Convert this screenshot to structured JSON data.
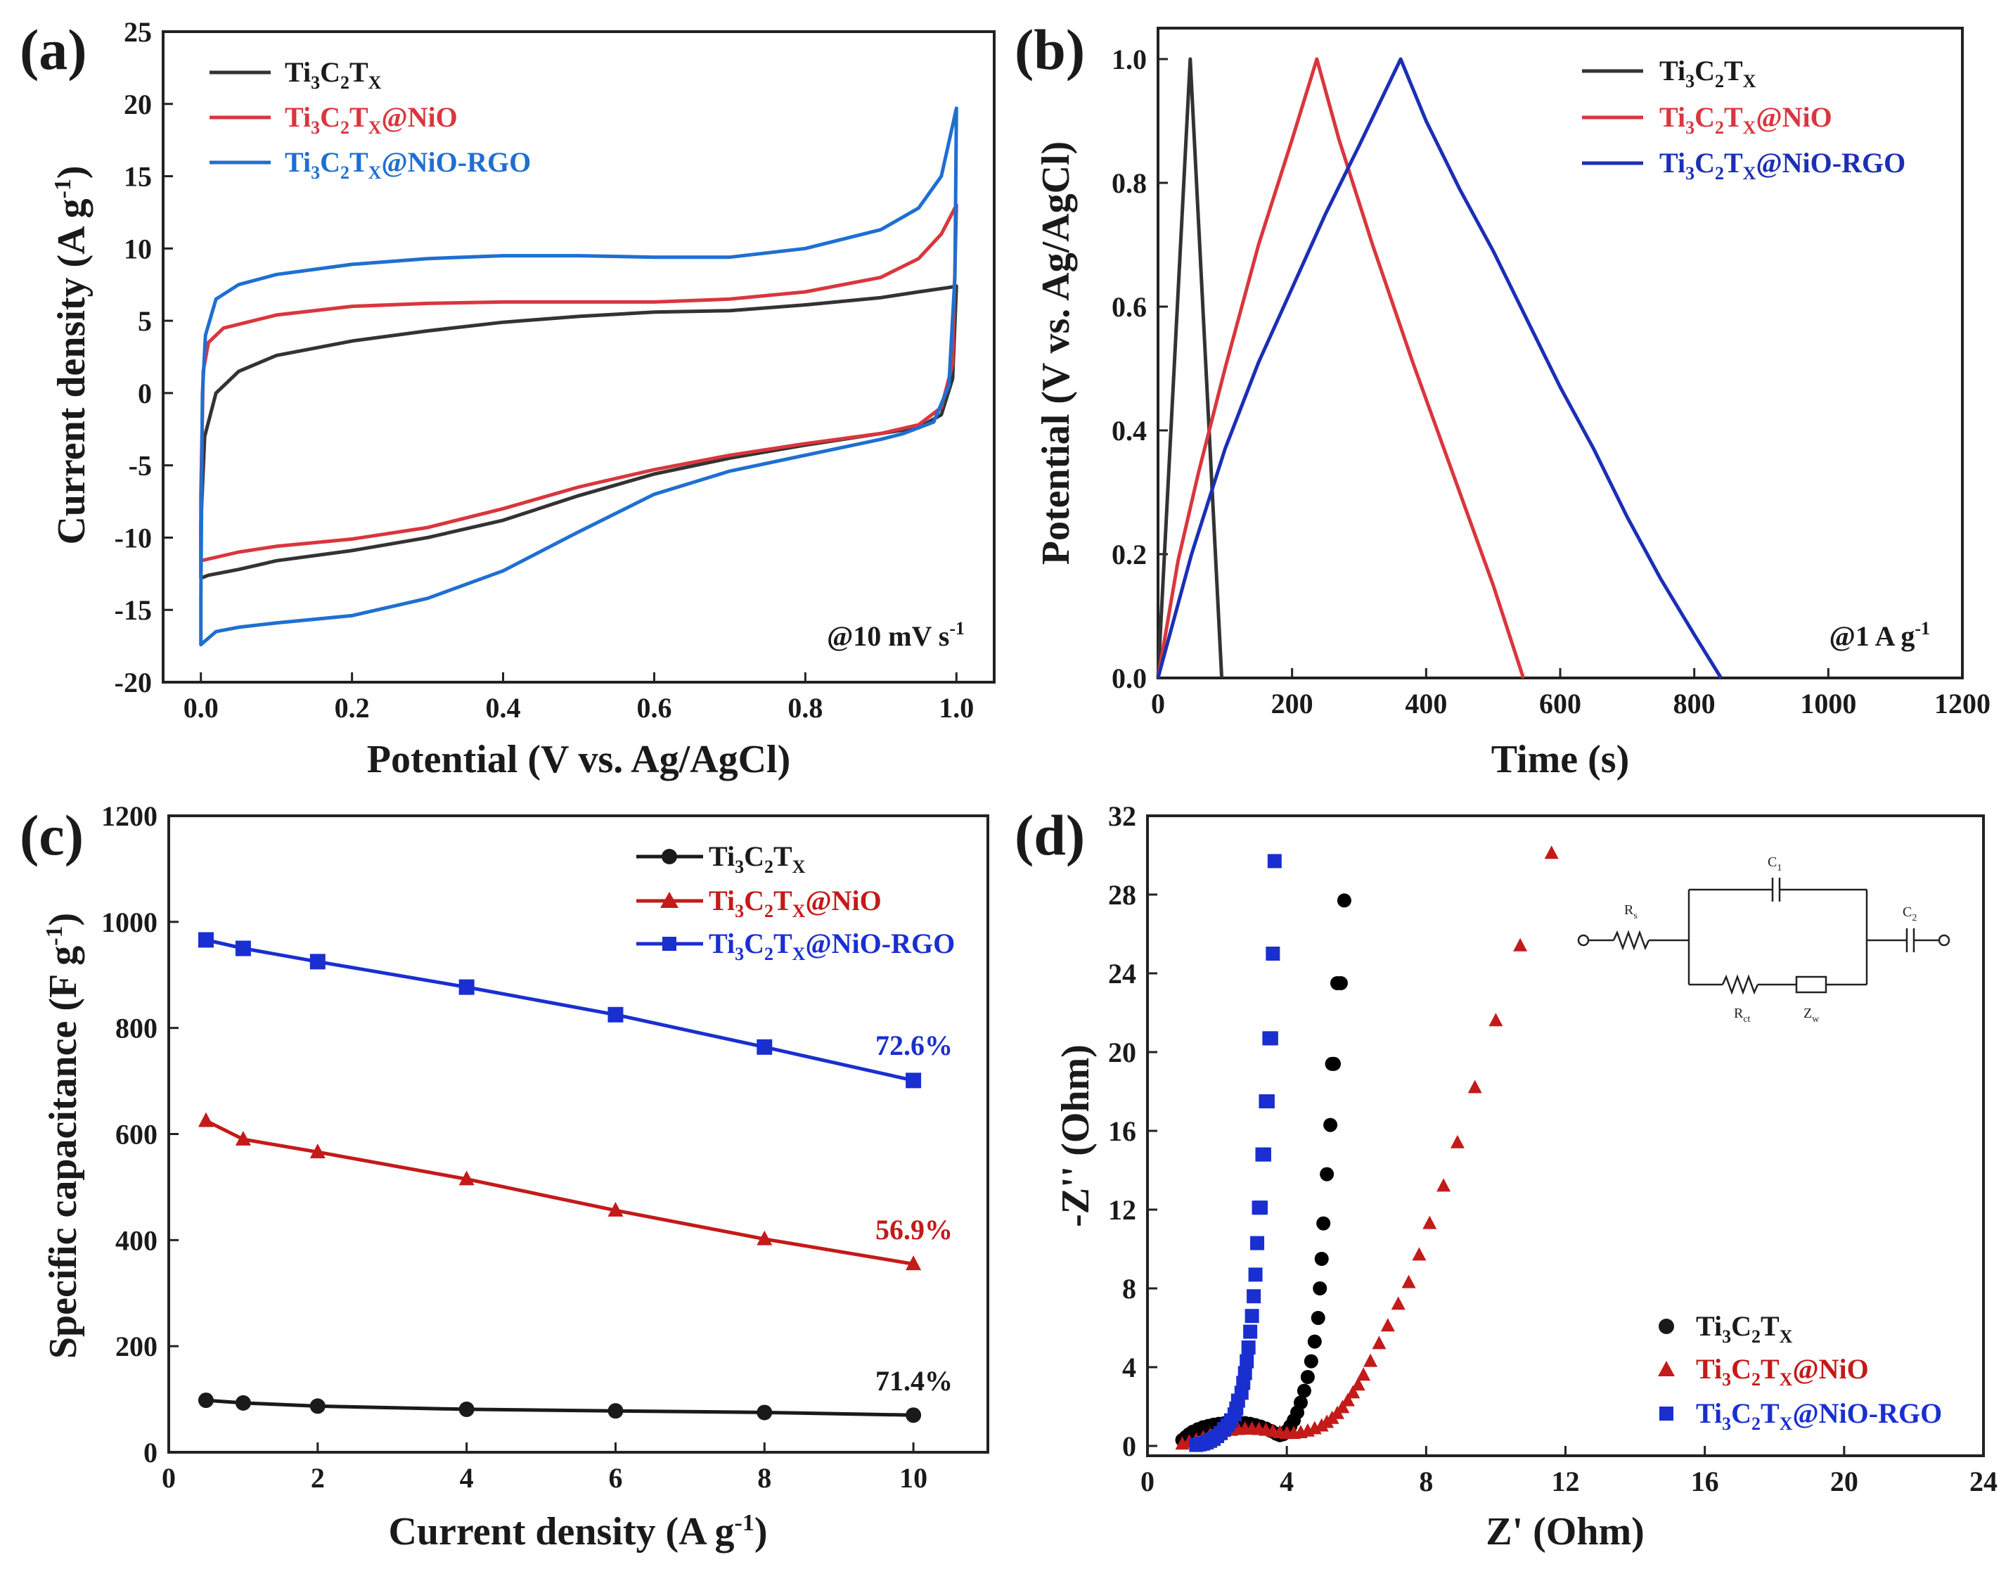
{
  "figure": {
    "colors": {
      "black": "#333333",
      "red": "#d9363e",
      "blue": "#1f6fd1",
      "navy": "#1b2fb5",
      "bluesq": "#1a2fd0",
      "text": "#1a1a1a"
    },
    "panels": {
      "a": {
        "label": "(a)",
        "note": "@10 mV s",
        "note_sup": "-1",
        "xlabel": "Potential (V vs. Ag/AgCl)",
        "ylabel": "Current density (A g",
        "ylabel_sup": "-1",
        "ylabel_end": ")"
      },
      "b": {
        "label": "(b)",
        "note": "@1 A g",
        "note_sup": "-1",
        "xlabel": "Time (s)",
        "ylabel": "Potential (V vs. Ag/AgCl)"
      },
      "c": {
        "label": "(c)",
        "xlabel": "Current density (A g",
        "xlabel_sup": "-1",
        "xlabel_end": ")",
        "ylabel": "Specific capacitance (F g",
        "ylabel_sup": "-1",
        "ylabel_end": ")"
      },
      "d": {
        "label": "(d)",
        "xlabel": "Z' (Ohm)",
        "ylabel": "-Z'' (Ohm)"
      }
    },
    "legend": {
      "s1": {
        "base": "Ti",
        "n1": "3",
        "c": "C",
        "n2": "2",
        "t": "T",
        "x": "X",
        "suffix": ""
      },
      "s2": {
        "base": "Ti",
        "n1": "3",
        "c": "C",
        "n2": "2",
        "t": "T",
        "x": "X",
        "suffix": "@NiO"
      },
      "s3": {
        "base": "Ti",
        "n1": "3",
        "c": "C",
        "n2": "2",
        "t": "T",
        "x": "X",
        "suffix": "@NiO-RGO"
      }
    },
    "circuit": {
      "rs": "R",
      "rs_sub": "s",
      "c1": "C",
      "c1_sub": "1",
      "c2": "C",
      "c2_sub": "2",
      "rct": "R",
      "rct_sub": "ct",
      "zw": "Z",
      "zw_sub": "w"
    },
    "retention": {
      "blue": "72.6%",
      "red": "56.9%",
      "black": "71.4%"
    }
  },
  "chart_data": [
    {
      "panel": "a",
      "type": "line",
      "title": "",
      "xlabel": "Potential (V vs. Ag/AgCl)",
      "ylabel": "Current density (A g-1)",
      "xlim": [
        -0.05,
        1.05
      ],
      "ylim": [
        -20,
        25
      ],
      "xticks": [
        "0.0",
        "0.2",
        "0.4",
        "0.6",
        "0.8",
        "1.0"
      ],
      "xtick_values": [
        0,
        0.2,
        0.4,
        0.6,
        0.8,
        1.0
      ],
      "yticks": [
        -20,
        -15,
        -10,
        -5,
        0,
        5,
        10,
        15,
        20,
        25
      ],
      "annotation": "@10 mV s-1",
      "series": [
        {
          "name": "Ti3C2TX",
          "color": "black",
          "upper": [
            [
              0,
              -9
            ],
            [
              0.005,
              -3
            ],
            [
              0.02,
              0
            ],
            [
              0.05,
              1.5
            ],
            [
              0.1,
              2.6
            ],
            [
              0.2,
              3.6
            ],
            [
              0.3,
              4.3
            ],
            [
              0.4,
              4.9
            ],
            [
              0.5,
              5.3
            ],
            [
              0.6,
              5.6
            ],
            [
              0.7,
              5.7
            ],
            [
              0.8,
              6.1
            ],
            [
              0.9,
              6.6
            ],
            [
              0.95,
              7.0
            ],
            [
              0.99,
              7.3
            ],
            [
              1.0,
              7.4
            ]
          ],
          "lower": [
            [
              1.0,
              7.4
            ],
            [
              0.995,
              1.0
            ],
            [
              0.98,
              -1.5
            ],
            [
              0.95,
              -2.4
            ],
            [
              0.9,
              -2.8
            ],
            [
              0.8,
              -3.6
            ],
            [
              0.7,
              -4.5
            ],
            [
              0.6,
              -5.6
            ],
            [
              0.5,
              -7.1
            ],
            [
              0.4,
              -8.8
            ],
            [
              0.3,
              -10.0
            ],
            [
              0.2,
              -10.9
            ],
            [
              0.1,
              -11.6
            ],
            [
              0.05,
              -12.2
            ],
            [
              0.01,
              -12.6
            ],
            [
              0,
              -12.8
            ],
            [
              0,
              -9
            ]
          ]
        },
        {
          "name": "Ti3C2TX@NiO",
          "color": "red",
          "upper": [
            [
              0,
              -7
            ],
            [
              0.003,
              1.5
            ],
            [
              0.01,
              3.5
            ],
            [
              0.03,
              4.5
            ],
            [
              0.1,
              5.4
            ],
            [
              0.2,
              6.0
            ],
            [
              0.3,
              6.2
            ],
            [
              0.4,
              6.3
            ],
            [
              0.5,
              6.3
            ],
            [
              0.6,
              6.3
            ],
            [
              0.7,
              6.5
            ],
            [
              0.8,
              7.0
            ],
            [
              0.9,
              8.0
            ],
            [
              0.95,
              9.3
            ],
            [
              0.98,
              11.0
            ],
            [
              1.0,
              13.0
            ]
          ],
          "lower": [
            [
              1.0,
              13.0
            ],
            [
              0.995,
              2.0
            ],
            [
              0.98,
              -1.0
            ],
            [
              0.95,
              -2.2
            ],
            [
              0.9,
              -2.8
            ],
            [
              0.8,
              -3.5
            ],
            [
              0.7,
              -4.3
            ],
            [
              0.6,
              -5.3
            ],
            [
              0.5,
              -6.5
            ],
            [
              0.4,
              -8.0
            ],
            [
              0.3,
              -9.3
            ],
            [
              0.2,
              -10.1
            ],
            [
              0.1,
              -10.6
            ],
            [
              0.05,
              -11.0
            ],
            [
              0,
              -11.6
            ],
            [
              0,
              -7
            ]
          ]
        },
        {
          "name": "Ti3C2TX@NiO-RGO",
          "color": "blue",
          "upper": [
            [
              0,
              -14
            ],
            [
              0.002,
              0
            ],
            [
              0.006,
              4
            ],
            [
              0.02,
              6.5
            ],
            [
              0.05,
              7.5
            ],
            [
              0.1,
              8.2
            ],
            [
              0.2,
              8.9
            ],
            [
              0.3,
              9.3
            ],
            [
              0.4,
              9.5
            ],
            [
              0.5,
              9.5
            ],
            [
              0.6,
              9.4
            ],
            [
              0.7,
              9.4
            ],
            [
              0.8,
              10.0
            ],
            [
              0.9,
              11.3
            ],
            [
              0.95,
              12.8
            ],
            [
              0.98,
              15.0
            ],
            [
              1.0,
              19.7
            ]
          ],
          "lower": [
            [
              1.0,
              19.7
            ],
            [
              0.998,
              8.0
            ],
            [
              0.99,
              0.5
            ],
            [
              0.97,
              -2.0
            ],
            [
              0.93,
              -2.8
            ],
            [
              0.9,
              -3.2
            ],
            [
              0.8,
              -4.3
            ],
            [
              0.7,
              -5.4
            ],
            [
              0.6,
              -7.0
            ],
            [
              0.5,
              -9.6
            ],
            [
              0.4,
              -12.3
            ],
            [
              0.3,
              -14.2
            ],
            [
              0.2,
              -15.4
            ],
            [
              0.1,
              -15.9
            ],
            [
              0.05,
              -16.2
            ],
            [
              0.02,
              -16.5
            ],
            [
              0,
              -17.4
            ],
            [
              0,
              -14
            ]
          ]
        }
      ]
    },
    {
      "panel": "b",
      "type": "line",
      "title": "",
      "xlabel": "Time (s)",
      "ylabel": "Potential (V vs. Ag/AgCl)",
      "xlim": [
        0,
        1200
      ],
      "ylim": [
        0,
        1.05
      ],
      "xticks": [
        0,
        200,
        400,
        600,
        800,
        1000,
        1200
      ],
      "yticks": [
        "0.0",
        "0.2",
        "0.4",
        "0.6",
        "0.8",
        "1.0"
      ],
      "ytick_values": [
        0,
        0.2,
        0.4,
        0.6,
        0.8,
        1.0
      ],
      "annotation": "@1 A g-1",
      "series": [
        {
          "name": "Ti3C2TX",
          "color": "black",
          "x": [
            0,
            48,
            95
          ],
          "y": [
            0,
            1.0,
            0
          ]
        },
        {
          "name": "Ti3C2TX@NiO",
          "color": "red",
          "x": [
            0,
            30,
            60,
            100,
            150,
            200,
            237,
            270,
            320,
            380,
            440,
            500,
            545
          ],
          "y": [
            0,
            0.19,
            0.33,
            0.5,
            0.7,
            0.87,
            1.0,
            0.87,
            0.7,
            0.51,
            0.33,
            0.15,
            0
          ]
        },
        {
          "name": "Ti3C2TX@NiO-RGO",
          "color": "navy",
          "x": [
            0,
            50,
            100,
            150,
            200,
            250,
            300,
            362,
            400,
            450,
            500,
            550,
            600,
            650,
            700,
            750,
            800,
            840
          ],
          "y": [
            0,
            0.2,
            0.37,
            0.51,
            0.63,
            0.75,
            0.86,
            1.0,
            0.9,
            0.79,
            0.69,
            0.58,
            0.47,
            0.37,
            0.26,
            0.16,
            0.07,
            0
          ]
        }
      ]
    },
    {
      "panel": "c",
      "type": "line",
      "title": "",
      "xlabel": "Current density (A g-1)",
      "ylabel": "Specific capacitance (F g-1)",
      "xlim": [
        0,
        11
      ],
      "ylim": [
        0,
        1200
      ],
      "xticks": [
        0,
        2,
        4,
        6,
        8,
        10
      ],
      "yticks": [
        0,
        200,
        400,
        600,
        800,
        1000,
        1200
      ],
      "x": [
        0.5,
        1,
        2,
        4,
        6,
        8,
        10
      ],
      "series": [
        {
          "name": "Ti3C2TX",
          "color": "black",
          "marker": "circle",
          "values": [
            98,
            93,
            87,
            81,
            78,
            75,
            70
          ]
        },
        {
          "name": "Ti3C2TX@NiO",
          "color": "red",
          "marker": "triangle",
          "values": [
            625,
            590,
            566,
            515,
            456,
            402,
            355
          ]
        },
        {
          "name": "Ti3C2TX@NiO-RGO",
          "color": "bluesq",
          "marker": "square",
          "values": [
            966,
            950,
            925,
            877,
            825,
            764,
            701
          ]
        }
      ],
      "annotations": [
        "72.6%",
        "56.9%",
        "71.4%"
      ]
    },
    {
      "panel": "d",
      "type": "scatter",
      "title": "",
      "xlabel": "Z' (Ohm)",
      "ylabel": "-Z'' (Ohm)",
      "xlim": [
        0,
        24
      ],
      "ylim": [
        -0.5,
        32
      ],
      "xticks": [
        0,
        4,
        8,
        12,
        16,
        20,
        24
      ],
      "yticks": [
        0,
        4,
        8,
        12,
        16,
        20,
        24,
        28,
        32
      ],
      "series": [
        {
          "name": "Ti3C2TX",
          "color": "black",
          "marker": "circle",
          "x": [
            1.0,
            1.1,
            1.2,
            1.3,
            1.45,
            1.6,
            1.75,
            1.9,
            2.05,
            2.2,
            2.35,
            2.5,
            2.65,
            2.8,
            2.95,
            3.1,
            3.25,
            3.4,
            3.55,
            3.7,
            3.8,
            3.9,
            4.0,
            4.1,
            4.2,
            4.3,
            4.4,
            4.5,
            4.6,
            4.7,
            4.8,
            4.9,
            4.95,
            5.0,
            5.05,
            5.15,
            5.25,
            5.3,
            5.35,
            5.45,
            5.55,
            5.65
          ],
          "y": [
            0.3,
            0.45,
            0.6,
            0.72,
            0.85,
            0.95,
            1.02,
            1.08,
            1.12,
            1.15,
            1.17,
            1.18,
            1.18,
            1.16,
            1.12,
            1.06,
            0.98,
            0.88,
            0.76,
            0.62,
            0.55,
            0.6,
            0.75,
            1.0,
            1.3,
            1.7,
            2.2,
            2.8,
            3.5,
            4.3,
            5.3,
            6.5,
            8.0,
            9.5,
            11.3,
            13.8,
            16.3,
            19.4,
            19.4,
            23.5,
            23.5,
            27.7
          ]
        },
        {
          "name": "Ti3C2TX@NiO",
          "color": "red",
          "marker": "triangle",
          "x": [
            1.0,
            1.2,
            1.4,
            1.6,
            1.8,
            2.0,
            2.2,
            2.4,
            2.6,
            2.8,
            3.0,
            3.2,
            3.4,
            3.6,
            3.8,
            4.0,
            4.2,
            4.4,
            4.6,
            4.8,
            5.0,
            5.15,
            5.3,
            5.45,
            5.6,
            5.75,
            5.9,
            6.05,
            6.2,
            6.4,
            6.65,
            6.9,
            7.2,
            7.5,
            7.8,
            8.1,
            8.5,
            8.9,
            9.4,
            10.0,
            10.7,
            11.6
          ],
          "y": [
            0.1,
            0.2,
            0.3,
            0.42,
            0.55,
            0.66,
            0.74,
            0.8,
            0.84,
            0.86,
            0.86,
            0.84,
            0.8,
            0.74,
            0.68,
            0.64,
            0.64,
            0.68,
            0.76,
            0.88,
            1.02,
            1.2,
            1.4,
            1.65,
            1.95,
            2.3,
            2.7,
            3.1,
            3.6,
            4.3,
            5.2,
            6.1,
            7.2,
            8.3,
            9.7,
            11.3,
            13.2,
            15.4,
            18.2,
            21.6,
            25.4,
            30.1
          ]
        },
        {
          "name": "Ti3C2TX@NiO-RGO",
          "color": "bluesq",
          "marker": "square",
          "x": [
            1.4,
            1.5,
            1.6,
            1.7,
            1.8,
            1.9,
            2.0,
            2.1,
            2.2,
            2.3,
            2.4,
            2.5,
            2.55,
            2.6,
            2.7,
            2.75,
            2.8,
            2.85,
            2.9,
            2.95,
            3.0,
            3.05,
            3.1,
            3.15,
            3.2,
            3.25,
            3.3,
            3.35,
            3.4,
            3.45,
            3.5,
            3.55,
            3.6,
            3.65
          ],
          "y": [
            0.05,
            0.08,
            0.12,
            0.18,
            0.26,
            0.36,
            0.5,
            0.65,
            0.85,
            1.05,
            1.3,
            1.6,
            1.9,
            2.3,
            2.7,
            3.2,
            3.7,
            4.3,
            5.0,
            5.8,
            6.6,
            7.6,
            8.7,
            10.3,
            12.1,
            12.1,
            14.8,
            14.8,
            17.5,
            17.5,
            20.7,
            20.7,
            25.0,
            29.7
          ]
        }
      ]
    }
  ]
}
